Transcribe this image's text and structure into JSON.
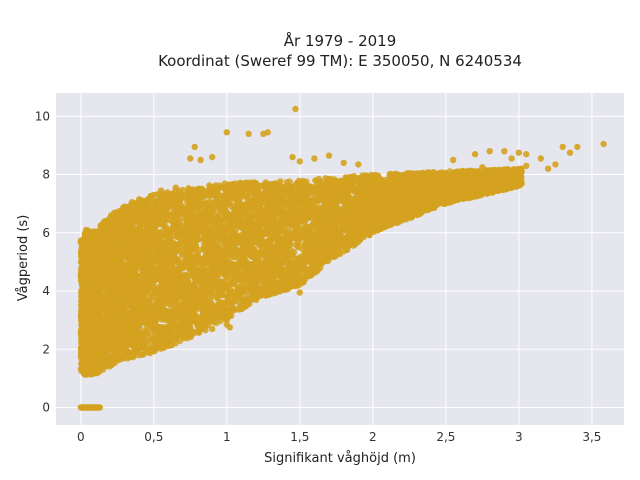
{
  "chart_data": {
    "type": "scatter",
    "title_lines": [
      "År 1979 - 2019",
      "Koordinat (Sweref 99 TM): E 350050, N 6240534"
    ],
    "xlabel": "Signifikant våghöjd (m)",
    "ylabel": "Vågperiod (s)",
    "xlim": [
      -0.17,
      3.72
    ],
    "ylim": [
      -0.6,
      10.8
    ],
    "x_ticks": [
      0,
      0.5,
      1,
      1.5,
      2,
      2.5,
      3,
      3.5
    ],
    "x_tick_labels": [
      "0",
      "0,5",
      "1",
      "1,5",
      "2",
      "2,5",
      "3",
      "3,5"
    ],
    "y_ticks": [
      0,
      2,
      4,
      6,
      8,
      10
    ],
    "y_tick_labels": [
      "0",
      "2",
      "4",
      "6",
      "8",
      "10"
    ],
    "grid": true,
    "legend": "none",
    "colors": {
      "marker": "#D4A21E",
      "plot_bg": "#E6E6EF",
      "grid": "#FFFFFF"
    },
    "envelope": {
      "lower": [
        [
          0.0,
          1.1
        ],
        [
          0.1,
          1.15
        ],
        [
          0.2,
          1.4
        ],
        [
          0.3,
          1.65
        ],
        [
          0.5,
          1.9
        ],
        [
          0.7,
          2.3
        ],
        [
          0.8,
          2.5
        ],
        [
          1.0,
          3.0
        ],
        [
          1.2,
          3.7
        ],
        [
          1.5,
          4.2
        ],
        [
          1.7,
          5.0
        ],
        [
          2.0,
          6.0
        ],
        [
          2.5,
          7.0
        ],
        [
          3.0,
          7.6
        ]
      ],
      "upper": [
        [
          0.0,
          4.3
        ],
        [
          0.03,
          6.1
        ],
        [
          0.1,
          6.1
        ],
        [
          0.2,
          6.6
        ],
        [
          0.3,
          6.9
        ],
        [
          0.5,
          7.3
        ],
        [
          0.8,
          7.6
        ],
        [
          1.0,
          7.7
        ],
        [
          1.5,
          7.8
        ],
        [
          2.0,
          8.0
        ],
        [
          2.5,
          8.1
        ],
        [
          3.0,
          8.2
        ],
        [
          3.1,
          8.2
        ]
      ]
    },
    "zero_period_points": {
      "x_range": [
        0.0,
        0.13
      ],
      "y": 0
    },
    "points": [
      [
        1.47,
        10.25
      ],
      [
        0.82,
        8.5
      ],
      [
        0.9,
        8.6
      ],
      [
        1.0,
        9.45
      ],
      [
        1.15,
        9.4
      ],
      [
        1.25,
        9.4
      ],
      [
        1.28,
        9.45
      ],
      [
        0.75,
        8.55
      ],
      [
        0.78,
        8.95
      ],
      [
        1.45,
        8.6
      ],
      [
        1.5,
        8.45
      ],
      [
        1.6,
        8.55
      ],
      [
        1.7,
        8.65
      ],
      [
        1.8,
        8.4
      ],
      [
        1.9,
        8.35
      ],
      [
        2.55,
        8.5
      ],
      [
        2.7,
        8.7
      ],
      [
        2.8,
        8.8
      ],
      [
        2.75,
        8.25
      ],
      [
        2.9,
        8.8
      ],
      [
        2.95,
        8.55
      ],
      [
        3.05,
        8.7
      ],
      [
        3.0,
        8.75
      ],
      [
        3.15,
        8.55
      ],
      [
        3.2,
        8.2
      ],
      [
        3.3,
        8.95
      ],
      [
        3.35,
        8.75
      ],
      [
        3.4,
        8.95
      ],
      [
        3.58,
        9.05
      ],
      [
        3.25,
        8.35
      ],
      [
        3.05,
        8.3
      ],
      [
        1.2,
        4.1
      ],
      [
        1.3,
        4.0
      ],
      [
        1.45,
        4.3
      ],
      [
        1.5,
        3.95
      ],
      [
        1.55,
        4.5
      ],
      [
        1.58,
        4.55
      ],
      [
        1.3,
        4.75
      ],
      [
        1.1,
        4.5
      ],
      [
        0.8,
        4.6
      ],
      [
        0.85,
        3.35
      ],
      [
        0.75,
        2.75
      ],
      [
        0.9,
        2.7
      ],
      [
        1.0,
        2.85
      ],
      [
        1.02,
        2.75
      ],
      [
        0.7,
        3.3
      ],
      [
        0.6,
        3.0
      ],
      [
        1.2,
        3.7
      ],
      [
        0.2,
        6.5
      ],
      [
        0.25,
        6.7
      ],
      [
        0.35,
        7.05
      ],
      [
        0.5,
        7.3
      ],
      [
        0.55,
        7.45
      ],
      [
        0.65,
        7.55
      ],
      [
        0.1,
        6.0
      ],
      [
        0.15,
        6.2
      ],
      [
        0.3,
        6.9
      ],
      [
        0.4,
        7.15
      ],
      [
        2.1,
        6.3
      ],
      [
        2.2,
        6.5
      ],
      [
        1.8,
        5.8
      ],
      [
        1.7,
        5.5
      ],
      [
        2.35,
        6.9
      ],
      [
        2.6,
        7.3
      ],
      [
        2.45,
        7.1
      ],
      [
        1.9,
        6.0
      ]
    ]
  }
}
